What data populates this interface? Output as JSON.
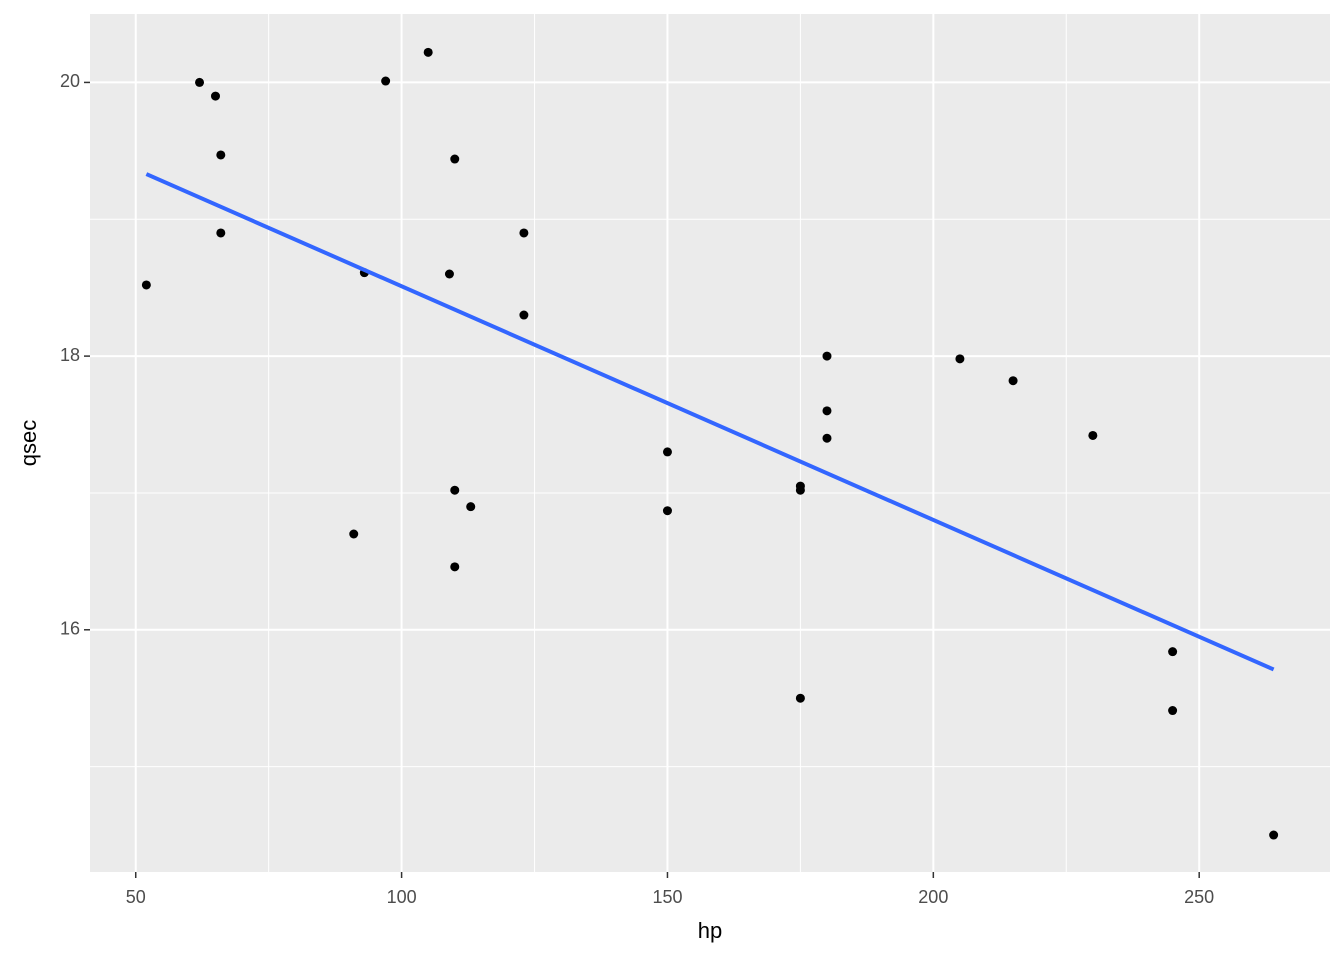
{
  "chart_data": {
    "type": "scatter",
    "xlabel": "hp",
    "ylabel": "qsec",
    "x": [
      52,
      62,
      65,
      66,
      66,
      91,
      93,
      97,
      105,
      109,
      110,
      110,
      110,
      113,
      123,
      123,
      150,
      150,
      175,
      175,
      175,
      180,
      180,
      180,
      205,
      215,
      230,
      245,
      245,
      264
    ],
    "values": [
      18.52,
      20.0,
      19.9,
      19.47,
      18.9,
      16.7,
      18.61,
      20.01,
      20.22,
      18.6,
      19.44,
      17.02,
      16.46,
      16.9,
      18.9,
      18.3,
      17.3,
      16.87,
      17.05,
      17.02,
      15.5,
      18.0,
      17.6,
      17.4,
      17.98,
      17.82,
      17.42,
      15.84,
      15.41,
      14.5
    ],
    "color": "#000000",
    "trend": {
      "x": [
        52,
        264
      ],
      "values": [
        19.33,
        15.71
      ],
      "color": "#3366FF"
    },
    "xlim": [
      41.4,
      274.6
    ],
    "ylim": [
      14.23,
      20.5
    ],
    "xticks": [
      50,
      100,
      150,
      200,
      250
    ],
    "yticks": [
      16,
      18,
      20
    ],
    "xminor": [
      75,
      125,
      175,
      225
    ],
    "yminor": [
      15,
      17,
      19
    ],
    "grid": true
  }
}
